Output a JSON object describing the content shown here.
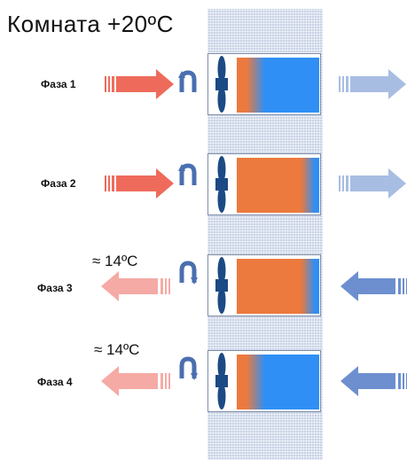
{
  "title": "Комната +20ºC",
  "phases": [
    {
      "label": "Фаза 1",
      "temp": "",
      "indoor_arrow": "in",
      "outdoor_arrow": "out",
      "fill": "mostly-blue"
    },
    {
      "label": "Фаза 2",
      "temp": "",
      "indoor_arrow": "in",
      "outdoor_arrow": "out",
      "fill": "mostly-orange"
    },
    {
      "label": "Фаза 3",
      "temp": "≈ 14ºC",
      "indoor_arrow": "out",
      "outdoor_arrow": "in",
      "fill": "mostly-orange"
    },
    {
      "label": "Фаза 4",
      "temp": "≈ 14ºC",
      "indoor_arrow": "out",
      "outdoor_arrow": "in",
      "fill": "mostly-blue"
    }
  ],
  "colors": {
    "warm_arrow": "#ee6b5b",
    "warm_arrow_light": "#f5aaa5",
    "cold_arrow": "#6d8fcf",
    "cold_arrow_light": "#a8bde2",
    "ceramic_orange": "#ec7a3e",
    "ceramic_blue": "#2f8ff5",
    "fan": "#1c4a85"
  }
}
